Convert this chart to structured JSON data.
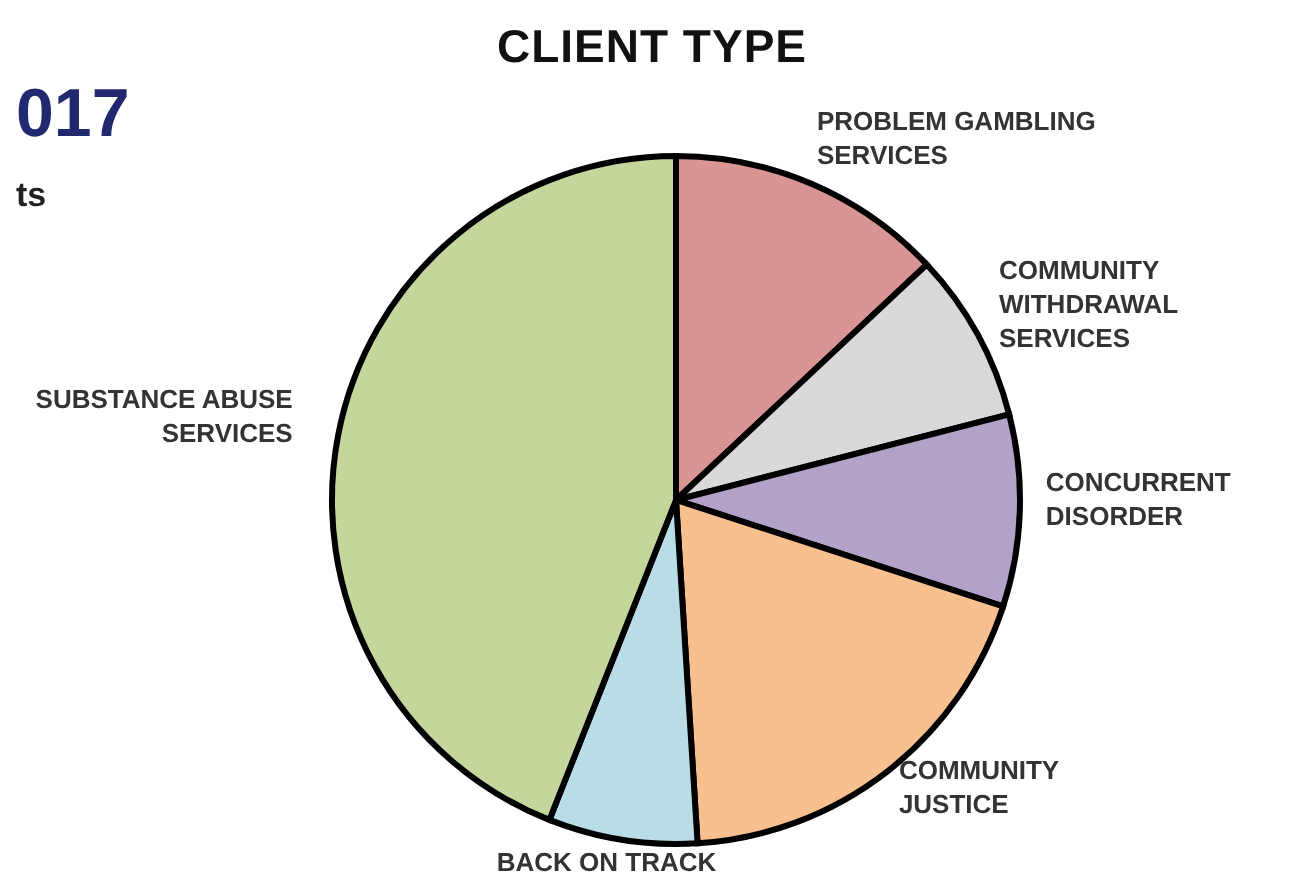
{
  "chart_data": {
    "type": "pie",
    "title": "CLIENT TYPE",
    "categories": [
      "PROBLEM GAMBLING SERVICES",
      "COMMUNITY WITHDRAWAL SERVICES",
      "CONCURRENT DISORDER",
      "COMMUNITY JUSTICE",
      "BACK ON TRACK",
      "SUBSTANCE ABUSE SERVICES"
    ],
    "values": [
      13,
      8,
      9,
      19,
      7,
      44
    ],
    "colors": [
      "#d99593",
      "#d9d9d9",
      "#b3a2c8",
      "#f9c08f",
      "#b8dde6",
      "#c4d69c"
    ],
    "annotations": [
      "017",
      "ts"
    ],
    "legend": false
  }
}
